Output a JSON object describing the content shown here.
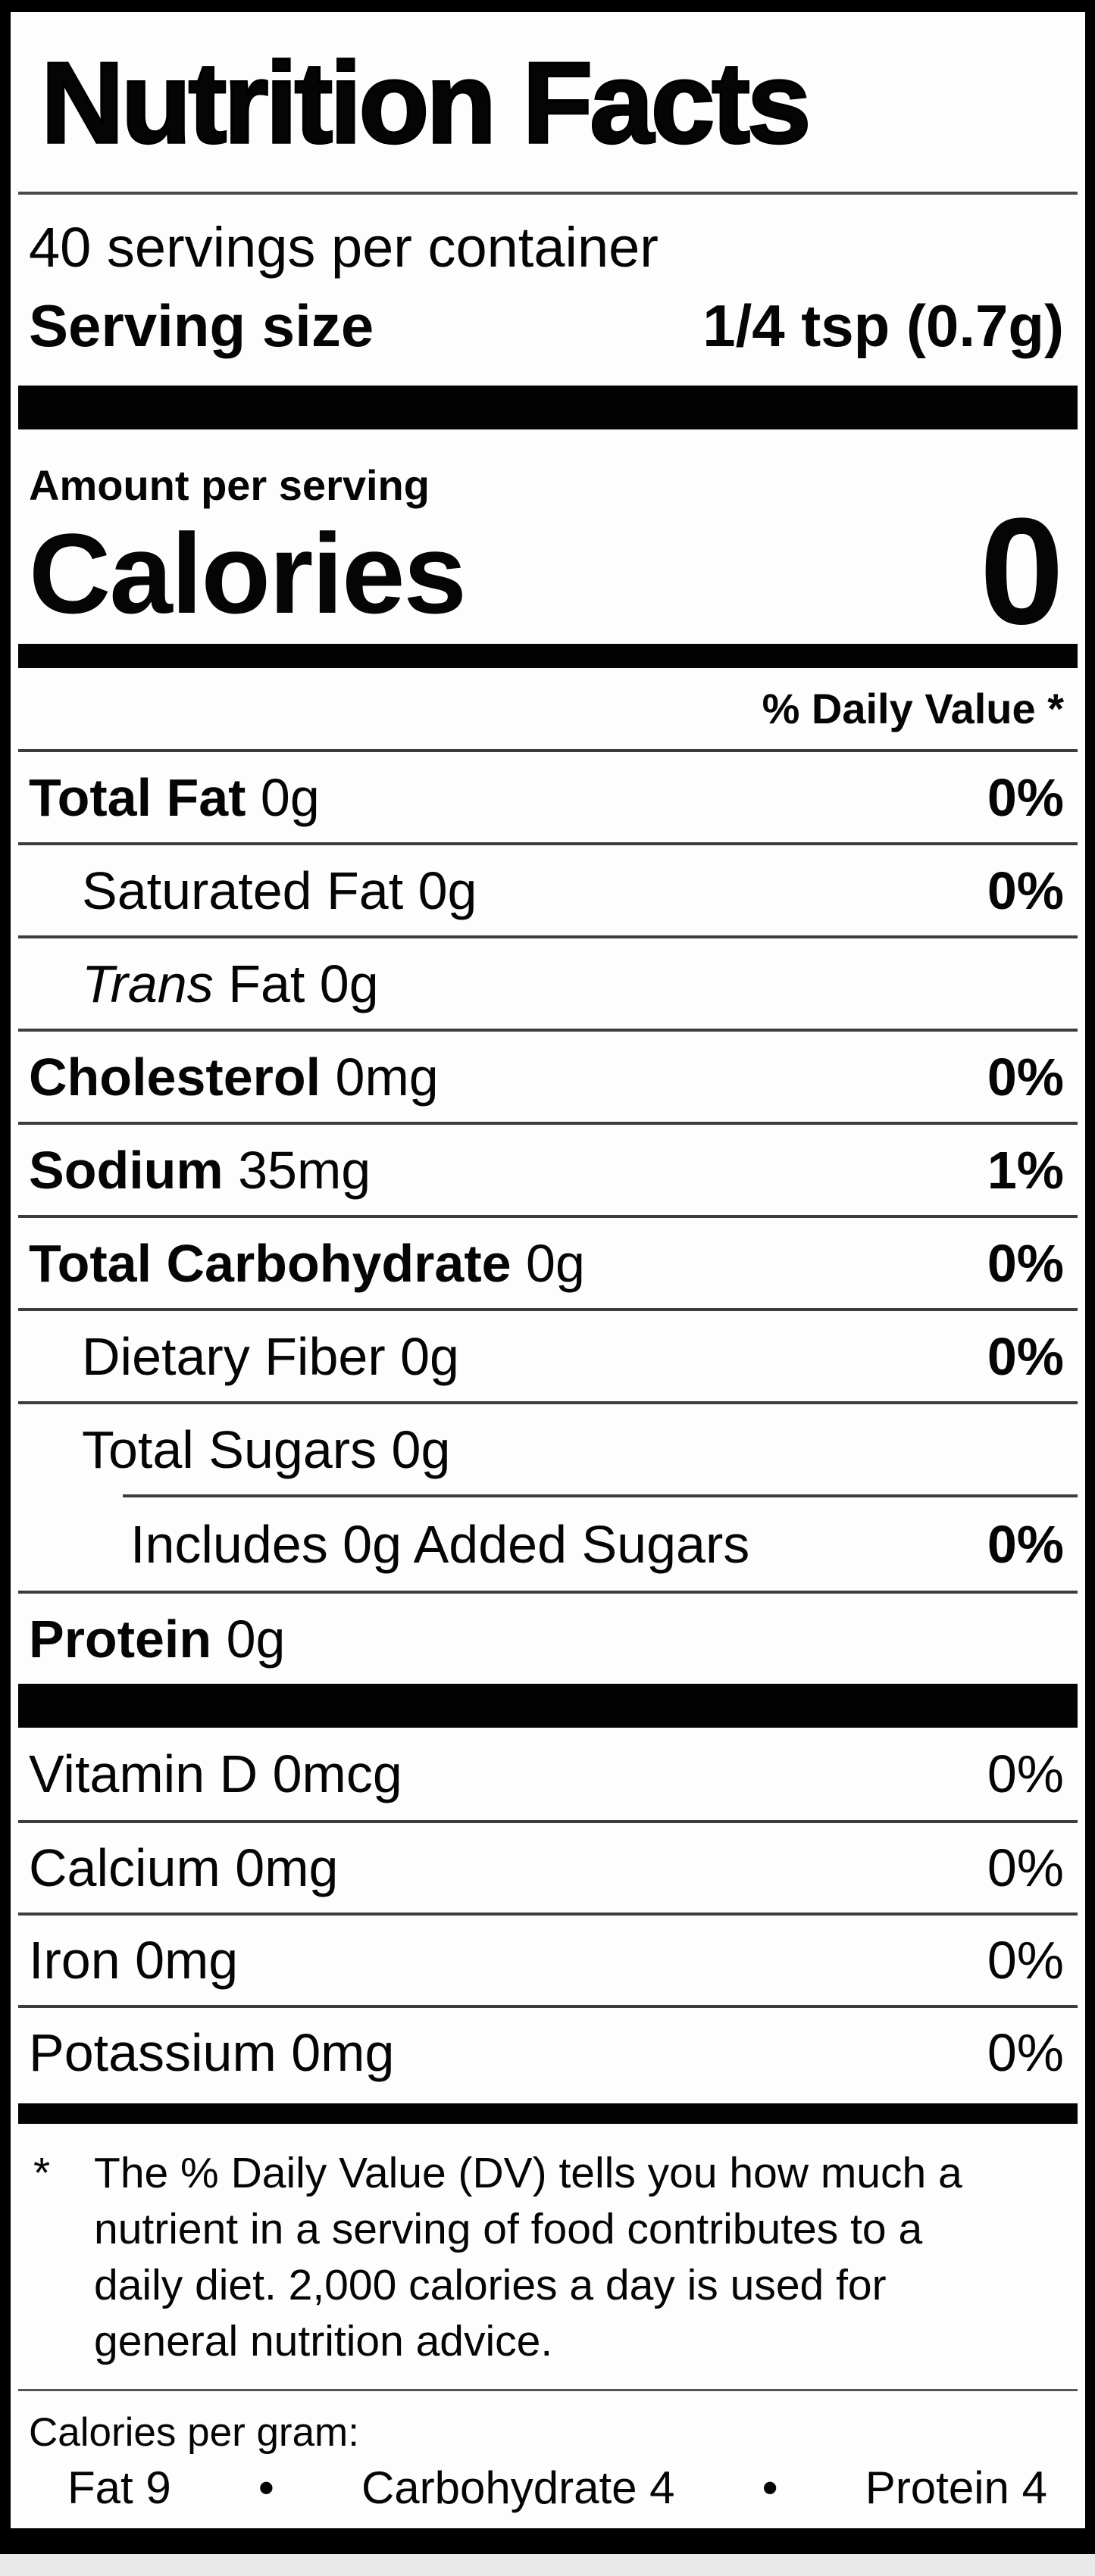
{
  "label": {
    "title": "Nutrition Facts",
    "servings_per_container": "40 servings per container",
    "serving_size_label": "Serving size",
    "serving_size_value": "1/4 tsp (0.7g)",
    "amount_per_serving": "Amount per serving",
    "calories_label": "Calories",
    "calories_value": "0",
    "daily_value_header": "% Daily Value *",
    "rows": [
      {
        "b": "Total Fat",
        "i": "",
        "r": " 0g",
        "dv": "0%"
      },
      {
        "b": "",
        "i": "",
        "r": "Saturated Fat 0g",
        "dv": "0%"
      },
      {
        "b": "",
        "i": "Trans",
        "r": " Fat 0g",
        "dv": ""
      },
      {
        "b": "Cholesterol",
        "i": "",
        "r": " 0mg",
        "dv": "0%"
      },
      {
        "b": "Sodium",
        "i": "",
        "r": " 35mg",
        "dv": "1%"
      },
      {
        "b": "Total Carbohydrate",
        "i": "",
        "r": " 0g",
        "dv": "0%"
      },
      {
        "b": "",
        "i": "",
        "r": "Dietary Fiber 0g",
        "dv": "0%"
      },
      {
        "b": "",
        "i": "",
        "r": "Total Sugars 0g",
        "dv": ""
      },
      {
        "b": "",
        "i": "",
        "r": "Includes 0g Added Sugars",
        "dv": "0%"
      },
      {
        "b": "Protein",
        "i": "",
        "r": " 0g",
        "dv": ""
      }
    ],
    "vitamins": [
      {
        "label": "Vitamin D 0mcg",
        "dv": "0%"
      },
      {
        "label": "Calcium 0mg",
        "dv": "0%"
      },
      {
        "label": "Iron 0mg",
        "dv": "0%"
      },
      {
        "label": "Potassium 0mg",
        "dv": "0%"
      }
    ],
    "footnote_marker": "*",
    "footnote_lines": [
      "The % Daily Value (DV) tells you how much a",
      "nutrient in a serving of food contributes to a",
      "daily diet. 2,000 calories a day is used for",
      "general nutrition advice."
    ],
    "calories_per_gram_label": "Calories per gram:",
    "cpg_items": [
      "Fat 9",
      "•",
      "Carbohydrate 4",
      "•",
      "Protein 4"
    ]
  },
  "colors": {
    "text": "#050505",
    "bar": "#030303",
    "divider": "#3c3c3c",
    "label_background": "#fdfdfd",
    "frame": "#000000",
    "page_background": "#e9e9e9"
  }
}
